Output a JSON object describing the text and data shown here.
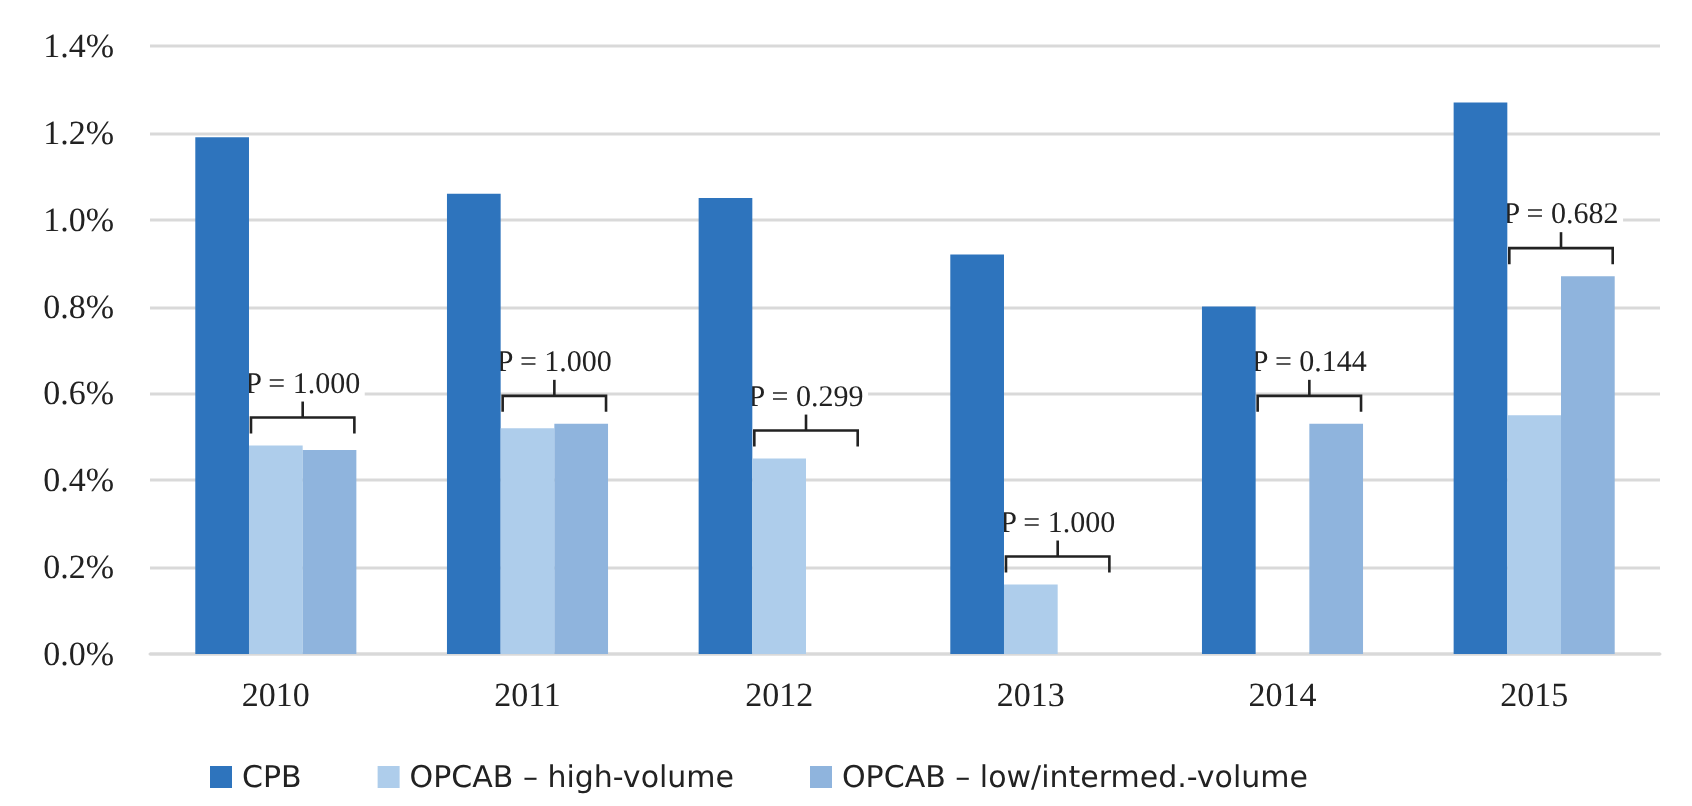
{
  "chart_data": {
    "type": "bar",
    "categories": [
      "2010",
      "2011",
      "2012",
      "2013",
      "2014",
      "2015"
    ],
    "series": [
      {
        "name": "CPB",
        "color": "#2e74bd",
        "values": [
          1.19,
          1.06,
          1.05,
          0.92,
          0.8,
          1.27
        ]
      },
      {
        "name": "OPCAB – high-volume",
        "color": "#aecdeb",
        "values": [
          0.48,
          0.52,
          0.45,
          0.16,
          null,
          0.55
        ]
      },
      {
        "name": "OPCAB – low/intermed.-volume",
        "color": "#8fb4dd",
        "values": [
          0.47,
          0.53,
          null,
          null,
          0.53,
          0.87
        ]
      }
    ],
    "ylim": [
      0,
      1.4
    ],
    "yticks": [
      {
        "value": 0,
        "label": "0.0%"
      },
      {
        "value": 0.2,
        "label": "0.2%"
      },
      {
        "value": 0.4,
        "label": "0.4%"
      },
      {
        "value": 0.6,
        "label": "0.6%"
      },
      {
        "value": 0.8,
        "label": "0.8%"
      },
      {
        "value": 1.0,
        "label": "1.0%"
      },
      {
        "value": 1.2,
        "label": "1.2%"
      },
      {
        "value": 1.4,
        "label": "1.4%"
      }
    ],
    "grid": "y",
    "legend": "bottom",
    "annotations": [
      "P = 1.000",
      "P = 1.000",
      "P = 0.299",
      "P = 1.000",
      "P = 0.144",
      "P = 0.682"
    ]
  }
}
